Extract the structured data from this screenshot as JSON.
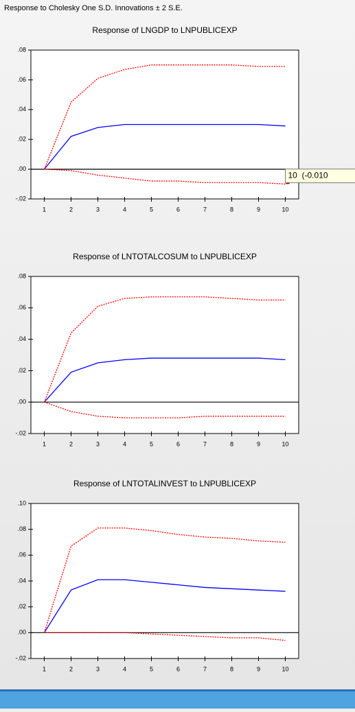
{
  "title": "Response to Cholesky One S.D. Innovations ± 2 S.E.",
  "chart_data": [
    {
      "type": "line",
      "title": "Response of LNGDP to LNPUBLICEXP",
      "x": [
        1,
        2,
        3,
        4,
        5,
        6,
        7,
        8,
        9,
        10
      ],
      "xlim": [
        0.5,
        10.5
      ],
      "xticks": [
        1,
        2,
        3,
        4,
        5,
        6,
        7,
        8,
        9,
        10
      ],
      "ylim": [
        -0.02,
        0.08
      ],
      "yticks": [
        {
          "value": -0.02,
          "label": "-.02"
        },
        {
          "value": 0,
          "label": ".00"
        },
        {
          "value": 0.02,
          "label": ".02"
        },
        {
          "value": 0.04,
          "label": ".04"
        },
        {
          "value": 0.06,
          "label": ".06"
        },
        {
          "value": 0.08,
          "label": ".08"
        }
      ],
      "series": [
        {
          "color": "#0000ff",
          "line_style": "solid",
          "values": [
            0,
            0.022,
            0.028,
            0.03,
            0.03,
            0.03,
            0.03,
            0.03,
            0.03,
            0.029
          ]
        },
        {
          "color": "#ff0000",
          "line_style": "dashed",
          "values": [
            0,
            0.045,
            0.061,
            0.067,
            0.07,
            0.07,
            0.07,
            0.07,
            0.069,
            0.069
          ]
        },
        {
          "color": "#ff0000",
          "line_style": "dashed",
          "values": [
            0,
            -0.001,
            -0.004,
            -0.006,
            -0.008,
            -0.008,
            -0.009,
            -0.009,
            -0.009,
            -0.01
          ]
        }
      ],
      "annotation": "10  (-0.010"
    },
    {
      "type": "line",
      "title": "Response of LNTOTALCOSUM to LNPUBLICEXP",
      "x": [
        1,
        2,
        3,
        4,
        5,
        6,
        7,
        8,
        9,
        10
      ],
      "xlim": [
        0.5,
        10.5
      ],
      "xticks": [
        1,
        2,
        3,
        4,
        5,
        6,
        7,
        8,
        9,
        10
      ],
      "ylim": [
        -0.02,
        0.08
      ],
      "yticks": [
        {
          "value": -0.02,
          "label": "-.02"
        },
        {
          "value": 0,
          "label": ".00"
        },
        {
          "value": 0.02,
          "label": ".02"
        },
        {
          "value": 0.04,
          "label": ".04"
        },
        {
          "value": 0.06,
          "label": ".06"
        },
        {
          "value": 0.08,
          "label": ".08"
        }
      ],
      "series": [
        {
          "color": "#0000ff",
          "line_style": "solid",
          "values": [
            0,
            0.019,
            0.025,
            0.027,
            0.028,
            0.028,
            0.028,
            0.028,
            0.028,
            0.027
          ]
        },
        {
          "color": "#ff0000",
          "line_style": "dashed",
          "values": [
            0,
            0.044,
            0.061,
            0.066,
            0.067,
            0.067,
            0.067,
            0.066,
            0.065,
            0.065
          ]
        },
        {
          "color": "#ff0000",
          "line_style": "dashed",
          "values": [
            0,
            -0.006,
            -0.009,
            -0.01,
            -0.01,
            -0.01,
            -0.009,
            -0.009,
            -0.009,
            -0.009
          ]
        }
      ]
    },
    {
      "type": "line",
      "title": "Response of LNTOTALINVEST to LNPUBLICEXP",
      "x": [
        1,
        2,
        3,
        4,
        5,
        6,
        7,
        8,
        9,
        10
      ],
      "xlim": [
        0.5,
        10.5
      ],
      "xticks": [
        1,
        2,
        3,
        4,
        5,
        6,
        7,
        8,
        9,
        10
      ],
      "ylim": [
        -0.02,
        0.1
      ],
      "yticks": [
        {
          "value": -0.02,
          "label": "-.02"
        },
        {
          "value": 0,
          "label": ".00"
        },
        {
          "value": 0.02,
          "label": ".02"
        },
        {
          "value": 0.04,
          "label": ".04"
        },
        {
          "value": 0.06,
          "label": ".06"
        },
        {
          "value": 0.08,
          "label": ".08"
        },
        {
          "value": 0.1,
          "label": ".10"
        }
      ],
      "series": [
        {
          "color": "#0000ff",
          "line_style": "solid",
          "values": [
            0,
            0.033,
            0.041,
            0.041,
            0.039,
            0.037,
            0.035,
            0.034,
            0.033,
            0.032
          ]
        },
        {
          "color": "#ff0000",
          "line_style": "dashed",
          "values": [
            0,
            0.067,
            0.081,
            0.081,
            0.079,
            0.076,
            0.074,
            0.073,
            0.071,
            0.07
          ]
        },
        {
          "color": "#ff0000",
          "line_style": "dashed",
          "values": [
            0,
            0.0,
            0.0,
            0.0,
            -0.001,
            -0.002,
            -0.003,
            -0.004,
            -0.004,
            -0.006
          ]
        }
      ]
    }
  ]
}
